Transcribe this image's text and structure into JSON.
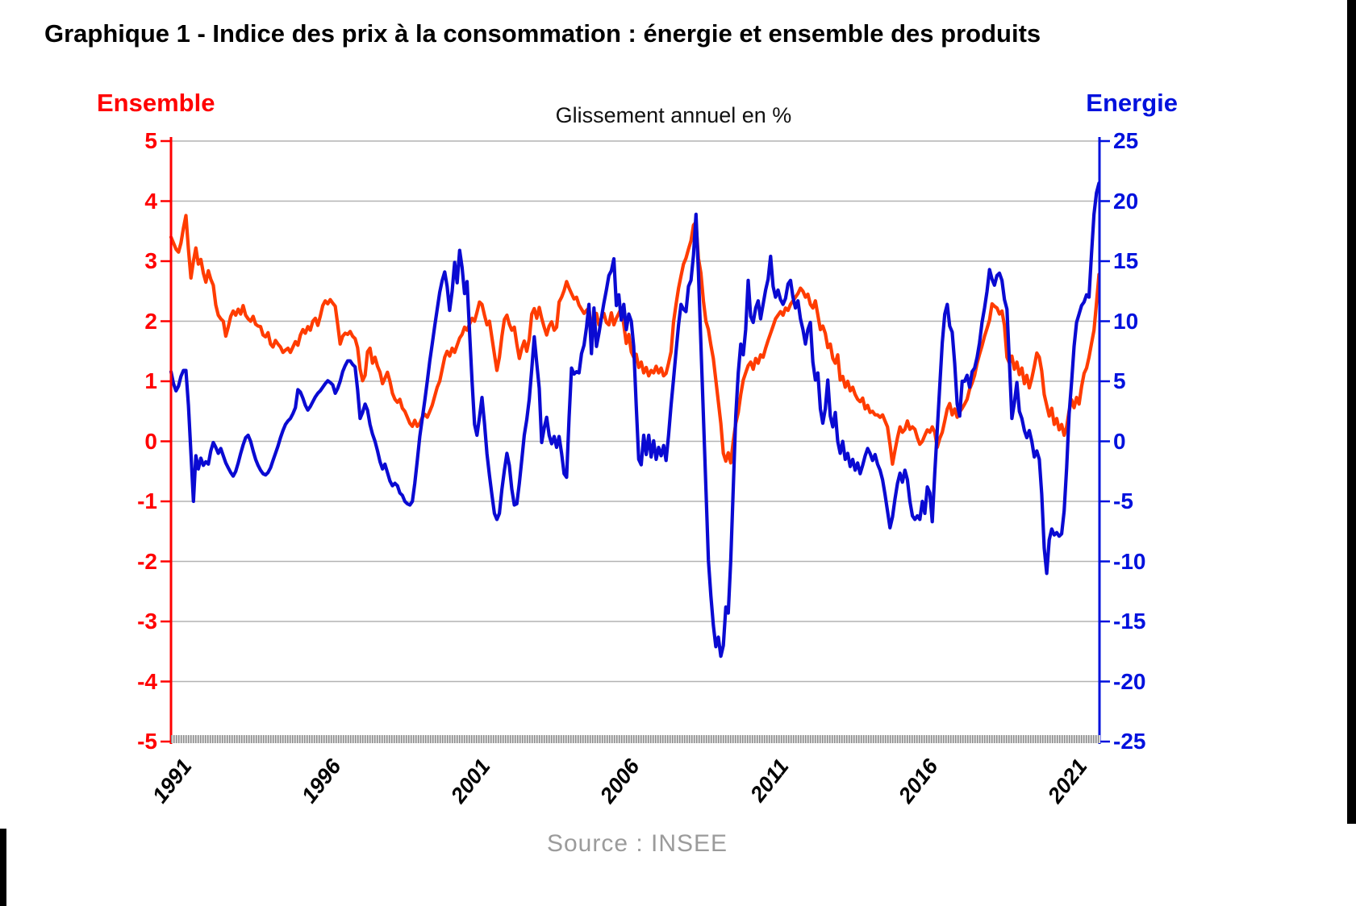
{
  "header": {
    "title": "Graphique 1 - Indice des prix à la consommation : énergie et ensemble des produits",
    "subtitle": "Glissement annuel en %",
    "source": "Source : INSEE"
  },
  "left_axis_label": "Ensemble",
  "right_axis_label": "Energie",
  "colors": {
    "left_axis": "#ff0000",
    "right_axis": "#0011dd",
    "ensemble_line": "#ff3c00",
    "energie_line": "#0a0ad2",
    "grid": "#b3b3b3"
  },
  "chart_data": {
    "type": "line",
    "title": "Graphique 1 - Indice des prix à la consommation : énergie et ensemble des produits",
    "subtitle": "Glissement annuel en %",
    "source": "Source : INSEE",
    "x_start_year": 1991,
    "x_monthly_points": 374,
    "x_tick_labels": [
      "1991",
      "1996",
      "2001",
      "2006",
      "2011",
      "2016",
      "2021"
    ],
    "left_axis": {
      "label": "Ensemble",
      "ylim": [
        -5,
        5
      ],
      "ticks": [
        5,
        4,
        3,
        2,
        1,
        0,
        -1,
        -2,
        -3,
        -4,
        -5
      ]
    },
    "right_axis": {
      "label": "Energie",
      "ylim": [
        -25,
        25
      ],
      "ticks": [
        25,
        20,
        15,
        10,
        5,
        0,
        -5,
        -10,
        -15,
        -20,
        -25
      ]
    },
    "grid": true,
    "legend_position": "top-corners",
    "series": [
      {
        "name": "Ensemble",
        "axis": "left",
        "color": "#ff3c00",
        "values": [
          3.4,
          3.3,
          3.2,
          3.15,
          3.3,
          3.55,
          3.76,
          3.2,
          2.72,
          3.0,
          3.22,
          2.95,
          3.03,
          2.8,
          2.65,
          2.84,
          2.7,
          2.6,
          2.27,
          2.1,
          2.04,
          2.0,
          1.75,
          1.9,
          2.08,
          2.17,
          2.1,
          2.2,
          2.12,
          2.26,
          2.1,
          2.04,
          2.0,
          2.08,
          1.95,
          1.92,
          1.91,
          1.77,
          1.74,
          1.81,
          1.62,
          1.57,
          1.68,
          1.62,
          1.57,
          1.48,
          1.52,
          1.55,
          1.48,
          1.57,
          1.66,
          1.6,
          1.77,
          1.86,
          1.8,
          1.91,
          1.85,
          2.0,
          2.05,
          1.93,
          2.08,
          2.26,
          2.34,
          2.29,
          2.36,
          2.3,
          2.25,
          1.95,
          1.62,
          1.75,
          1.8,
          1.78,
          1.83,
          1.75,
          1.71,
          1.56,
          1.2,
          1.01,
          1.1,
          1.49,
          1.55,
          1.3,
          1.4,
          1.25,
          1.15,
          0.96,
          1.05,
          1.15,
          1.0,
          0.8,
          0.7,
          0.65,
          0.7,
          0.55,
          0.5,
          0.4,
          0.3,
          0.25,
          0.35,
          0.25,
          0.3,
          0.4,
          0.45,
          0.4,
          0.5,
          0.6,
          0.75,
          0.9,
          1.0,
          1.2,
          1.4,
          1.5,
          1.42,
          1.55,
          1.48,
          1.6,
          1.72,
          1.78,
          1.9,
          1.85,
          1.95,
          2.05,
          2.0,
          2.15,
          2.32,
          2.28,
          2.1,
          1.94,
          2.0,
          1.72,
          1.45,
          1.18,
          1.4,
          1.75,
          2.03,
          2.1,
          1.95,
          1.85,
          1.9,
          1.62,
          1.38,
          1.55,
          1.67,
          1.5,
          1.7,
          2.12,
          2.21,
          2.05,
          2.23,
          2.05,
          1.9,
          1.77,
          1.92,
          1.99,
          1.85,
          1.9,
          2.32,
          2.4,
          2.51,
          2.66,
          2.55,
          2.46,
          2.37,
          2.4,
          2.27,
          2.2,
          2.13,
          2.18,
          2.22,
          1.84,
          2.03,
          2.13,
          1.94,
          2.05,
          2.13,
          1.98,
          1.94,
          2.14,
          1.94,
          2.05,
          2.13,
          2.22,
          1.94,
          1.63,
          1.78,
          1.49,
          1.4,
          1.45,
          1.23,
          1.32,
          1.14,
          1.23,
          1.09,
          1.18,
          1.14,
          1.25,
          1.14,
          1.22,
          1.09,
          1.13,
          1.3,
          1.49,
          1.99,
          2.28,
          2.55,
          2.75,
          2.95,
          3.05,
          3.2,
          3.34,
          3.6,
          3.65,
          3.05,
          2.8,
          2.34,
          2.0,
          1.86,
          1.6,
          1.38,
          1.02,
          0.66,
          0.3,
          -0.2,
          -0.33,
          -0.19,
          -0.36,
          0.0,
          0.3,
          0.48,
          0.78,
          1.02,
          1.14,
          1.26,
          1.32,
          1.2,
          1.38,
          1.3,
          1.44,
          1.4,
          1.55,
          1.68,
          1.8,
          1.92,
          2.04,
          2.1,
          2.16,
          2.1,
          2.22,
          2.18,
          2.28,
          2.34,
          2.4,
          2.46,
          2.55,
          2.5,
          2.4,
          2.45,
          2.28,
          2.22,
          2.34,
          2.1,
          1.86,
          1.92,
          1.8,
          1.56,
          1.62,
          1.38,
          1.3,
          1.44,
          1.02,
          1.08,
          0.9,
          1.0,
          0.84,
          0.9,
          0.78,
          0.7,
          0.66,
          0.72,
          0.54,
          0.6,
          0.48,
          0.5,
          0.44,
          0.44,
          0.4,
          0.44,
          0.34,
          0.24,
          -0.05,
          -0.38,
          -0.15,
          0.06,
          0.24,
          0.15,
          0.2,
          0.34,
          0.2,
          0.24,
          0.2,
          0.06,
          -0.05,
          0.0,
          0.1,
          0.19,
          0.15,
          0.24,
          0.15,
          -0.1,
          0.05,
          0.15,
          0.34,
          0.54,
          0.63,
          0.44,
          0.54,
          0.4,
          0.49,
          0.55,
          0.62,
          0.7,
          0.87,
          0.97,
          1.1,
          1.3,
          1.45,
          1.59,
          1.75,
          1.88,
          2.02,
          2.29,
          2.25,
          2.22,
          2.12,
          2.17,
          1.93,
          1.4,
          1.3,
          1.42,
          1.2,
          1.32,
          1.11,
          1.22,
          0.96,
          1.1,
          0.89,
          1.05,
          1.25,
          1.47,
          1.4,
          1.17,
          0.78,
          0.6,
          0.42,
          0.55,
          0.28,
          0.38,
          0.19,
          0.28,
          0.1,
          0.24,
          0.51,
          0.69,
          0.56,
          0.73,
          0.62,
          0.91,
          1.13,
          1.22,
          1.4,
          1.63,
          1.85,
          2.3,
          2.78
        ]
      },
      {
        "name": "Energie",
        "axis": "right",
        "color": "#0a0ad2",
        "values": [
          5.8,
          4.8,
          4.2,
          4.6,
          5.4,
          5.9,
          5.9,
          3.0,
          -1.0,
          -5.0,
          -1.2,
          -2.3,
          -1.4,
          -2.0,
          -1.7,
          -1.9,
          -0.8,
          -0.1,
          -0.5,
          -1.0,
          -0.6,
          -1.2,
          -1.8,
          -2.2,
          -2.6,
          -2.9,
          -2.5,
          -1.8,
          -1.0,
          -0.3,
          0.3,
          0.5,
          0.0,
          -0.8,
          -1.5,
          -2.0,
          -2.4,
          -2.7,
          -2.8,
          -2.6,
          -2.2,
          -1.6,
          -1.0,
          -0.4,
          0.3,
          0.9,
          1.4,
          1.7,
          1.9,
          2.3,
          2.8,
          4.3,
          4.1,
          3.6,
          3.0,
          2.6,
          2.9,
          3.3,
          3.7,
          4.0,
          4.2,
          4.5,
          4.8,
          5.05,
          4.9,
          4.7,
          4.0,
          4.4,
          5.0,
          5.8,
          6.3,
          6.7,
          6.7,
          6.4,
          6.2,
          4.3,
          1.9,
          2.4,
          3.1,
          2.6,
          1.4,
          0.6,
          0.0,
          -0.8,
          -1.7,
          -2.3,
          -1.9,
          -2.6,
          -3.3,
          -3.7,
          -3.5,
          -3.7,
          -4.3,
          -4.5,
          -5.0,
          -5.2,
          -5.3,
          -5.0,
          -3.5,
          -1.6,
          0.4,
          1.9,
          3.4,
          5.0,
          6.7,
          8.1,
          9.6,
          11.0,
          12.4,
          13.4,
          14.1,
          12.9,
          10.9,
          12.5,
          14.9,
          13.2,
          15.9,
          14.5,
          12.3,
          13.3,
          9.1,
          5.0,
          1.4,
          0.5,
          2.0,
          3.65,
          1.5,
          -1.05,
          -2.85,
          -4.5,
          -6.0,
          -6.5,
          -6.0,
          -4.0,
          -2.4,
          -1.0,
          -2.0,
          -4.0,
          -5.3,
          -5.2,
          -3.5,
          -1.5,
          0.5,
          1.8,
          3.5,
          6.0,
          8.7,
          6.5,
          4.4,
          -0.1,
          1.1,
          2.0,
          0.5,
          -0.2,
          0.4,
          -0.5,
          0.4,
          -1.0,
          -2.7,
          -3.0,
          2.0,
          6.1,
          5.6,
          5.8,
          5.7,
          7.3,
          8.0,
          9.5,
          11.4,
          7.3,
          11.1,
          7.9,
          9.0,
          10.3,
          11.5,
          12.6,
          13.8,
          14.2,
          15.2,
          11.3,
          12.2,
          10.1,
          11.4,
          9.3,
          10.6,
          10.0,
          7.9,
          3.0,
          -1.5,
          -1.95,
          0.5,
          -1.1,
          0.5,
          -1.3,
          0.05,
          -1.5,
          -0.5,
          -1.2,
          -0.35,
          -1.6,
          0.5,
          3.0,
          5.2,
          7.5,
          9.7,
          11.4,
          11.0,
          10.8,
          12.9,
          13.4,
          15.5,
          18.9,
          14.1,
          8.1,
          2.1,
          -3.9,
          -9.9,
          -12.9,
          -15.3,
          -17.1,
          -16.3,
          -17.9,
          -17.0,
          -13.8,
          -14.3,
          -9.9,
          -3.9,
          2.1,
          5.7,
          8.1,
          7.2,
          9.3,
          13.4,
          10.4,
          9.9,
          11.1,
          11.7,
          10.2,
          11.4,
          12.6,
          13.5,
          15.4,
          12.9,
          12.0,
          12.6,
          11.8,
          11.4,
          11.9,
          13.1,
          13.4,
          12.0,
          11.1,
          11.7,
          10.2,
          9.3,
          8.1,
          9.3,
          9.9,
          6.6,
          5.1,
          5.7,
          2.7,
          1.5,
          2.7,
          5.1,
          2.1,
          1.2,
          2.4,
          0.0,
          -1.0,
          0.0,
          -1.5,
          -1.0,
          -2.1,
          -1.5,
          -2.4,
          -1.8,
          -2.7,
          -2.0,
          -1.2,
          -0.6,
          -1.0,
          -1.6,
          -1.1,
          -1.9,
          -2.4,
          -3.2,
          -4.4,
          -5.8,
          -7.2,
          -6.3,
          -4.8,
          -3.5,
          -2.65,
          -3.4,
          -2.4,
          -3.2,
          -5.0,
          -6.2,
          -6.5,
          -6.2,
          -6.5,
          -5.0,
          -6.0,
          -3.8,
          -4.3,
          -6.7,
          -2.65,
          0.95,
          4.6,
          8.2,
          10.6,
          11.4,
          9.6,
          9.1,
          6.5,
          3.1,
          2.1,
          5.0,
          5.0,
          5.5,
          4.5,
          5.8,
          6.1,
          7.0,
          8.2,
          9.9,
          11.1,
          12.5,
          14.3,
          13.5,
          13.0,
          13.8,
          14.0,
          13.4,
          11.8,
          11.0,
          6.5,
          1.9,
          3.2,
          4.9,
          2.5,
          1.9,
          0.9,
          0.3,
          0.9,
          0.0,
          -1.3,
          -0.8,
          -1.5,
          -4.4,
          -8.9,
          -11.0,
          -8.2,
          -7.3,
          -7.8,
          -7.6,
          -7.9,
          -7.7,
          -5.8,
          -2.2,
          2.3,
          5.0,
          7.9,
          9.9,
          10.6,
          11.3,
          11.6,
          12.2,
          12.0,
          15.6,
          18.9,
          20.7,
          21.5
        ]
      }
    ]
  }
}
